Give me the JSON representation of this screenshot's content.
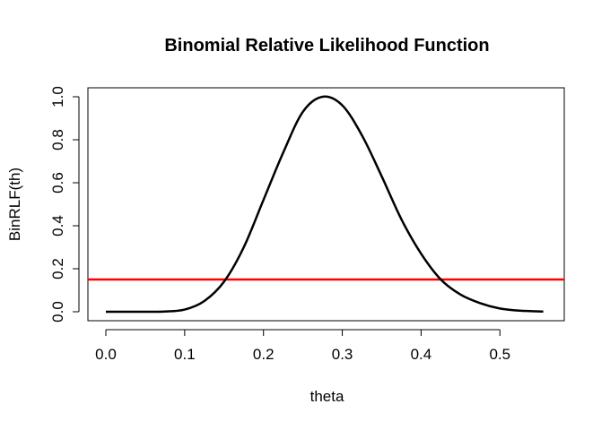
{
  "chart_data": {
    "type": "line",
    "title": "Binomial Relative Likelihood Function",
    "xlabel": "theta",
    "ylabel": "BinRLF(th)",
    "xlim": [
      0,
      0.56
    ],
    "ylim": [
      0,
      1.0
    ],
    "x_ticks": [
      "0.0",
      "0.1",
      "0.2",
      "0.3",
      "0.4",
      "0.5"
    ],
    "x_tick_values": [
      0,
      0.1,
      0.2,
      0.3,
      0.4,
      0.5
    ],
    "y_ticks": [
      "0.0",
      "0.2",
      "0.4",
      "0.6",
      "0.8",
      "1.0"
    ],
    "y_tick_values": [
      0,
      0.2,
      0.4,
      0.6,
      0.8,
      1.0
    ],
    "grid": false,
    "series": [
      {
        "color": "#000000",
        "x": [
          0.0,
          0.025,
          0.05,
          0.075,
          0.1,
          0.125,
          0.15,
          0.175,
          0.2,
          0.225,
          0.25,
          0.275,
          0.3,
          0.325,
          0.35,
          0.375,
          0.4,
          0.425,
          0.45,
          0.475,
          0.5,
          0.525,
          0.555
        ],
        "y": [
          0.0,
          0.0,
          0.0,
          0.001,
          0.01,
          0.05,
          0.14,
          0.3,
          0.52,
          0.74,
          0.93,
          1.0,
          0.96,
          0.82,
          0.63,
          0.43,
          0.27,
          0.15,
          0.08,
          0.04,
          0.015,
          0.005,
          0.001
        ]
      }
    ],
    "reference_lines": [
      {
        "type": "horizontal",
        "y": 0.15,
        "color": "#ff0000"
      }
    ]
  }
}
